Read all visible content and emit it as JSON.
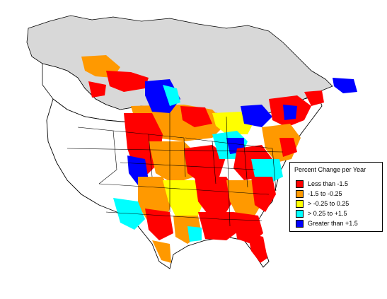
{
  "legend": {
    "title": "Percent Change per Year",
    "items": [
      {
        "label": "Less than -1.5",
        "color": "#ff0000"
      },
      {
        "label": "-1.5 to -0.25",
        "color": "#ff9900"
      },
      {
        "label": "> -0.25 to 0.25",
        "color": "#ffff00"
      },
      {
        "label": "> 0.25 to +1.5",
        "color": "#00ffff"
      },
      {
        "label": "Greater than +1.5",
        "color": "#0000ff"
      }
    ]
  },
  "colors": {
    "land": "#ffffff",
    "no_data_region": "#d8d8d8",
    "borders": "#000000"
  }
}
